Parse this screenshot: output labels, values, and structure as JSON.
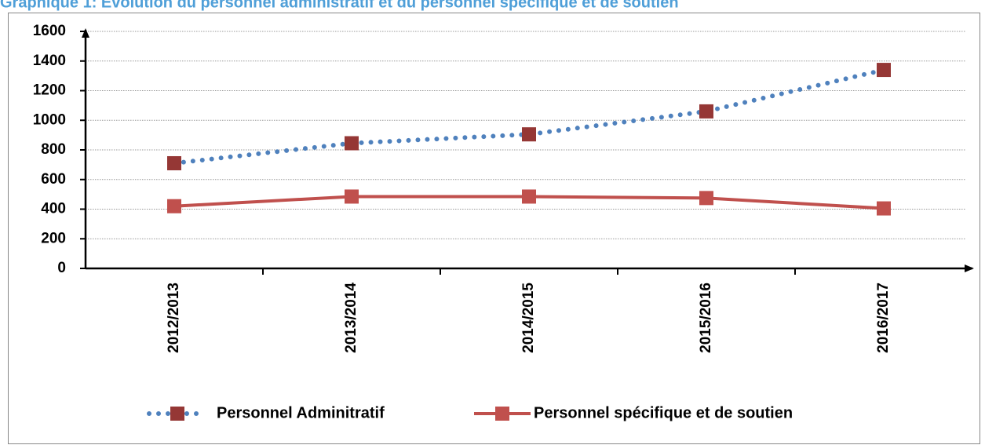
{
  "chart_data": {
    "type": "line",
    "title": "Graphique 1: Evolution du personnel administratif et du personnel spécifique et de soutien",
    "categories": [
      "2012/2013",
      "2013/2014",
      "2014/2015",
      "2015/2016",
      "2016/2017"
    ],
    "series": [
      {
        "name": "Personnel Adminitratif",
        "color": "#4f81bd",
        "marker_color": "#953735",
        "values": [
          710,
          845,
          905,
          1060,
          1340
        ]
      },
      {
        "name": "Personnel spécifique et de soutien",
        "color": "#c0504d",
        "marker_color": "#c0504d",
        "values": [
          420,
          485,
          485,
          475,
          405
        ]
      }
    ],
    "ylim": [
      0,
      1600
    ],
    "yticks": [
      0,
      200,
      400,
      600,
      800,
      1000,
      1200,
      1400,
      1600
    ],
    "grid": true
  }
}
